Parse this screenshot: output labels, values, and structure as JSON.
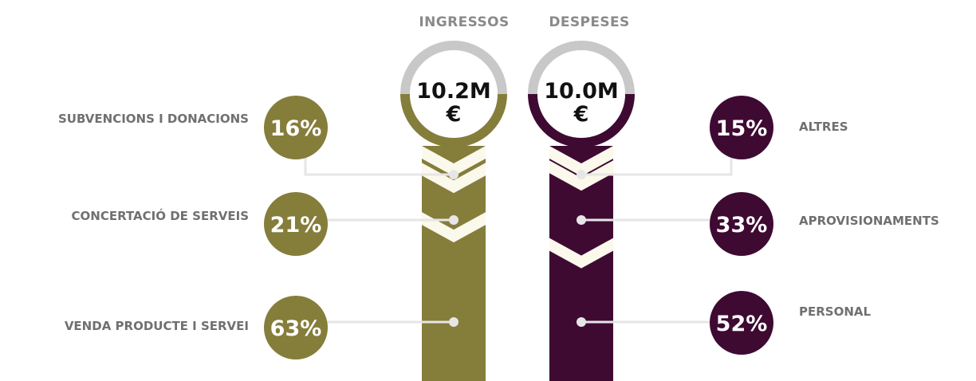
{
  "colors": {
    "income": "#857d3a",
    "expense": "#3e0a32",
    "ring": "#c8c8c8",
    "connector": "#e6e6e6",
    "chevron": "#fbf8ec"
  },
  "chart_data": {
    "type": "bar",
    "unit": "%",
    "series": [
      {
        "name": "INGRESSOS",
        "total": "10.2M",
        "currency": "€",
        "categories": [
          "SUBVENCIONS I DONACIONS",
          "CONCERTACIÓ DE SERVEIS",
          "VENDA PRODUCTE I SERVEI"
        ],
        "values": [
          16,
          21,
          63
        ]
      },
      {
        "name": "DESPESES",
        "total": "10.0M",
        "currency": "€",
        "categories": [
          "ALTRES",
          "APROVISIONAMENTS",
          "PERSONAL"
        ],
        "values": [
          15,
          33,
          52
        ]
      }
    ]
  }
}
